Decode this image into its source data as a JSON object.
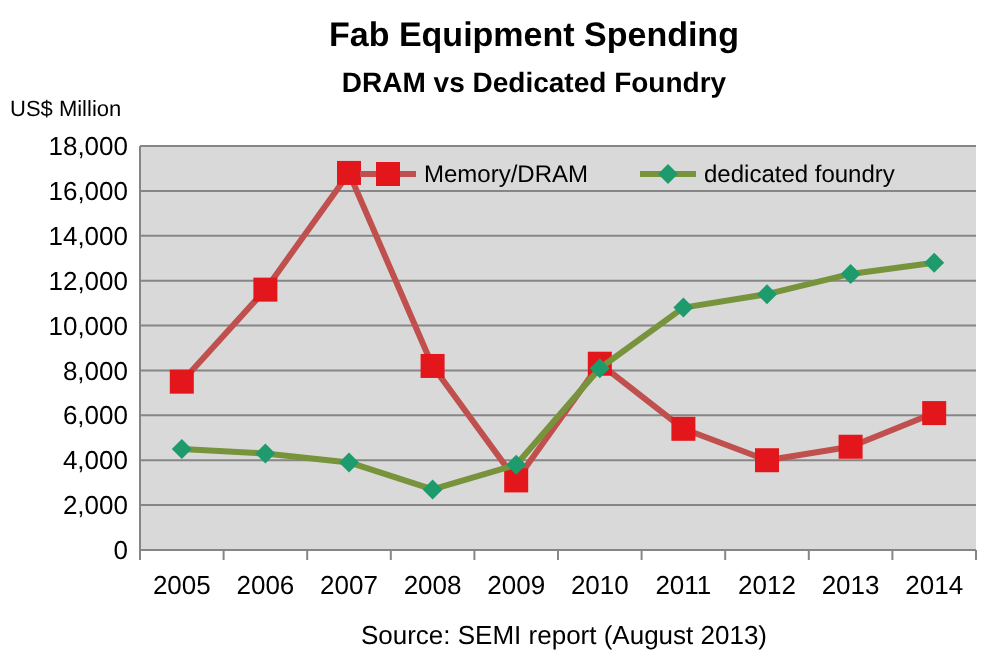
{
  "chart_data": {
    "type": "line",
    "title": "Fab Equipment Spending",
    "subtitle": "DRAM vs Dedicated Foundry",
    "ylabel": "US$ Million",
    "categories": [
      "2005",
      "2006",
      "2007",
      "2008",
      "2009",
      "2010",
      "2011",
      "2012",
      "2013",
      "2014"
    ],
    "series": [
      {
        "name": "Memory/DRAM",
        "color": "#c0504d",
        "marker": "square",
        "values": [
          7500,
          11600,
          16800,
          8200,
          3100,
          8300,
          5400,
          4000,
          4600,
          6100
        ]
      },
      {
        "name": "dedicated foundry",
        "color": "#77933c",
        "marker": "diamond",
        "values": [
          4500,
          4300,
          3900,
          2700,
          3800,
          8100,
          10800,
          11400,
          12300,
          12800
        ]
      }
    ],
    "ylim": [
      0,
      18000
    ],
    "yticks": [
      {
        "value": 0,
        "label": "0"
      },
      {
        "value": 2000,
        "label": "2,000"
      },
      {
        "value": 4000,
        "label": "4,000"
      },
      {
        "value": 6000,
        "label": "6,000"
      },
      {
        "value": 8000,
        "label": "8,000"
      },
      {
        "value": 10000,
        "label": "10,000"
      },
      {
        "value": 12000,
        "label": "12,000"
      },
      {
        "value": 14000,
        "label": "14,000"
      },
      {
        "value": 16000,
        "label": "16,000"
      },
      {
        "value": 18000,
        "label": "18,000"
      }
    ],
    "grid": "y",
    "legend": "top right",
    "annotations": [
      "Source: SEMI report (August 2013)"
    ]
  }
}
